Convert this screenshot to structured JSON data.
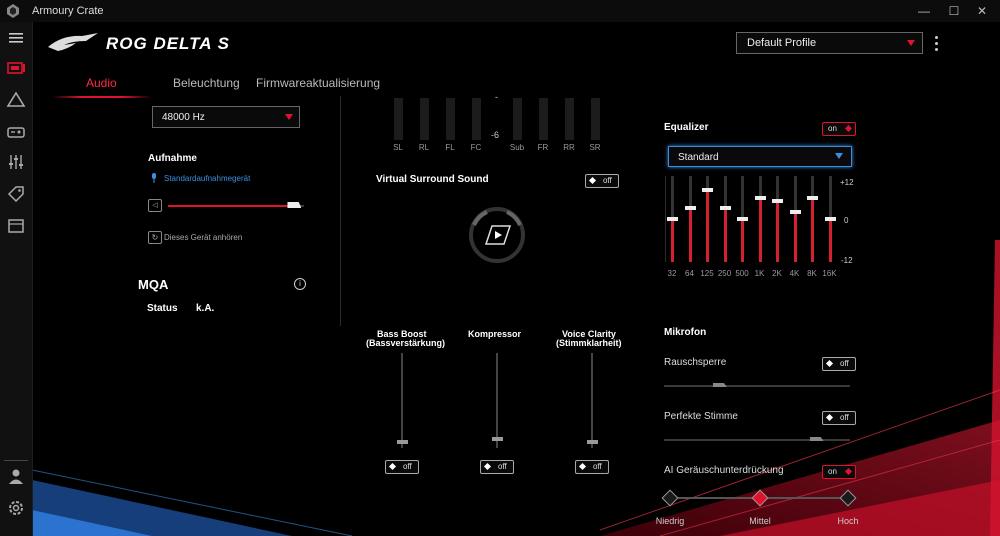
{
  "window": {
    "title": "Armoury Crate",
    "minimize": "—",
    "maximize": "☐",
    "close": "✕"
  },
  "sidebar": {
    "items": [
      "device-icon",
      "aura-icon",
      "gamepad-icon",
      "settings-sliders-icon",
      "tag-icon",
      "media-icon",
      "user-icon",
      "gear-icon"
    ]
  },
  "header": {
    "product": "ROG DELTA S",
    "profile": "Default Profile"
  },
  "tabs": [
    "Audio",
    "Beleuchtung",
    "Firmwareaktualisierung"
  ],
  "left": {
    "sample_rate": "48000 Hz",
    "recording_title": "Aufnahme",
    "recording_device": "Standardaufnahmegerät",
    "mic_volume": 0.93,
    "listen_label": "Dieses Gerät anhören",
    "mqa_title": "MQA",
    "status_label": "Status",
    "status_value": "k.A."
  },
  "surround": {
    "channels": [
      "SL",
      "RL",
      "FL",
      "FC",
      "Sub",
      "FR",
      "RR",
      "SR"
    ],
    "db_label": "-6",
    "title": "Virtual Surround Sound",
    "toggle": "off"
  },
  "effects": {
    "bass_title": "Bass Boost",
    "bass_sub": "(Bassverstärkung)",
    "bass_toggle": "off",
    "compressor_title": "Kompressor",
    "compressor_toggle": "off",
    "voice_title": "Voice Clarity",
    "voice_sub": "(Stimmklarheit)",
    "voice_toggle": "off"
  },
  "equalizer": {
    "title": "Equalizer",
    "toggle": "on",
    "preset": "Standard",
    "top_label": "+12",
    "mid_label": "0",
    "bottom_label": "-12",
    "bands": [
      "32",
      "64",
      "125",
      "250",
      "500",
      "1K",
      "2K",
      "4K",
      "8K",
      "16K"
    ],
    "gains_db": [
      0,
      3,
      8,
      3,
      0,
      6,
      5,
      2,
      6,
      0
    ]
  },
  "mic": {
    "title": "Mikrofon",
    "noise_gate_label": "Rauschsperre",
    "noise_gate_toggle": "off",
    "noise_gate_level": 0.3,
    "perfect_voice_label": "Perfekte Stimme",
    "perfect_voice_toggle": "off",
    "perfect_voice_level": 0.82,
    "ai_nc_label": "AI Geräuschunterdrückung",
    "ai_nc_toggle": "on",
    "ai_levels": [
      "Niedrig",
      "Mittel",
      "Hoch"
    ],
    "ai_selected": "Mittel"
  },
  "colors": {
    "accent": "#e0132e",
    "blue_accent": "#3b8de0"
  }
}
